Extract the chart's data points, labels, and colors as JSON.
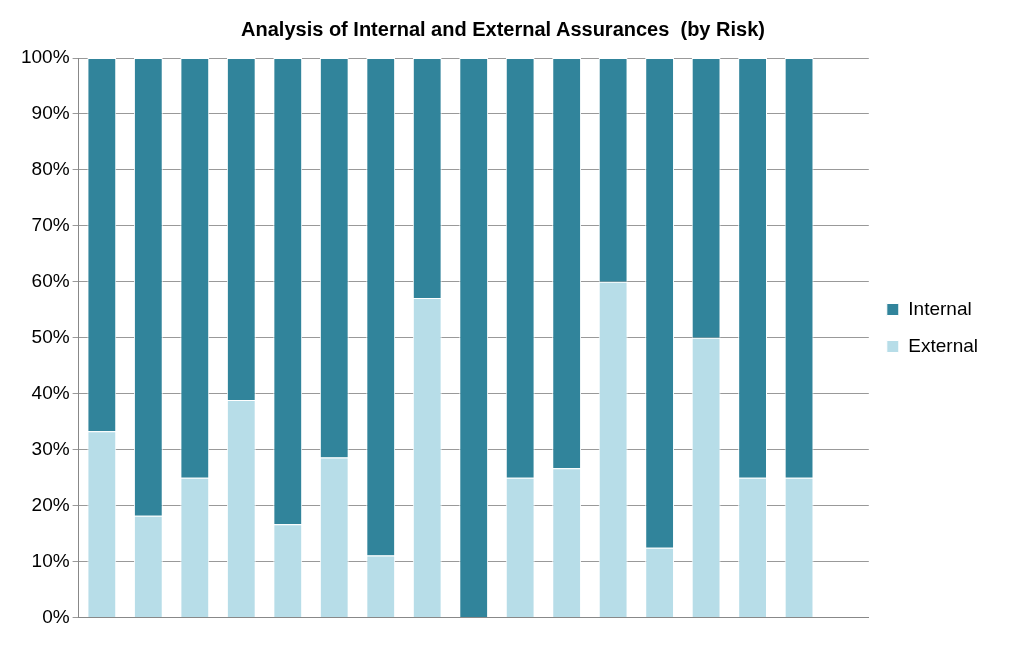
{
  "chart_data": {
    "type": "bar",
    "title": "Analysis of Internal and External Assurances  (by Risk)",
    "stacked": true,
    "categories": [
      null,
      null,
      null,
      null,
      null,
      null,
      null,
      null,
      null,
      null,
      null,
      null,
      null,
      null,
      null,
      null,
      null
    ],
    "series": [
      {
        "name": "External",
        "color": "#b7dde8",
        "values": [
          33.3,
          18.2,
          25,
          38.9,
          16.7,
          28.6,
          11.1,
          57.1,
          0,
          25,
          26.7,
          60,
          12.5,
          50,
          25,
          25,
          null
        ]
      },
      {
        "name": "Internal",
        "color": "#31849b",
        "values": [
          66.7,
          81.8,
          75,
          61.1,
          83.3,
          71.4,
          88.9,
          42.9,
          100,
          75,
          73.3,
          40,
          87.5,
          50,
          75,
          75,
          null
        ]
      }
    ],
    "ylim": [
      0,
      100
    ],
    "yticks": [
      {
        "value": 0,
        "label": "0%"
      },
      {
        "value": 10,
        "label": "10%"
      },
      {
        "value": 20,
        "label": "20%"
      },
      {
        "value": 30,
        "label": "30%"
      },
      {
        "value": 40,
        "label": "40%"
      },
      {
        "value": 50,
        "label": "50%"
      },
      {
        "value": 60,
        "label": "60%"
      },
      {
        "value": 70,
        "label": "70%"
      },
      {
        "value": 80,
        "label": "80%"
      },
      {
        "value": 90,
        "label": "90%"
      },
      {
        "value": 100,
        "label": "100%"
      }
    ],
    "grid": "y",
    "legend": "right"
  }
}
